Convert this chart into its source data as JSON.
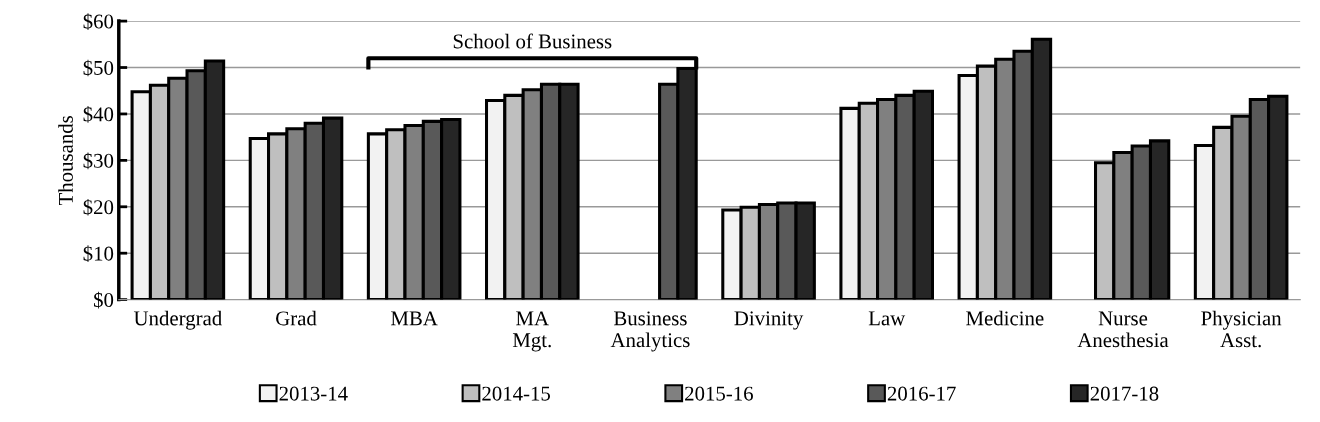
{
  "chart_data": {
    "type": "bar",
    "ylabel": "Thousands",
    "categories": [
      "Undergrad",
      "Grad",
      "MBA",
      "MA\nMgt.",
      "Business\nAnalytics",
      "Divinity",
      "Law",
      "Medicine",
      "Nurse\nAnesthesia",
      "Physician\nAsst."
    ],
    "series": [
      {
        "name": "2013-14",
        "color": "#f2f2f2",
        "values": [
          44.8,
          34.7,
          35.7,
          42.9,
          null,
          19.3,
          41.2,
          48.3,
          null,
          33.2
        ]
      },
      {
        "name": "2014-15",
        "color": "#bfbfbf",
        "values": [
          46.2,
          35.7,
          36.6,
          44.0,
          null,
          19.9,
          42.3,
          50.3,
          29.5,
          37.1
        ]
      },
      {
        "name": "2015-16",
        "color": "#808080",
        "values": [
          47.7,
          36.8,
          37.5,
          45.2,
          null,
          20.5,
          43.1,
          51.8,
          31.7,
          39.5
        ]
      },
      {
        "name": "2016-17",
        "color": "#595959",
        "values": [
          49.3,
          38.0,
          38.4,
          46.4,
          46.4,
          20.8,
          44.0,
          53.5,
          33.1,
          43.1
        ]
      },
      {
        "name": "2017-18",
        "color": "#262626",
        "values": [
          51.4,
          39.1,
          38.8,
          46.4,
          49.8,
          20.8,
          44.9,
          56.1,
          34.2,
          43.8
        ]
      }
    ],
    "ylim": [
      0,
      60
    ],
    "yticks": [
      {
        "value": 0,
        "label": "$0"
      },
      {
        "value": 10,
        "label": "$10"
      },
      {
        "value": 20,
        "label": "$20"
      },
      {
        "value": 30,
        "label": "$30"
      },
      {
        "value": 40,
        "label": "$40"
      },
      {
        "value": 50,
        "label": "$50"
      },
      {
        "value": 60,
        "label": "$60"
      }
    ],
    "grid": "y",
    "legend": "bottom",
    "annotations": [
      "School of Business"
    ]
  }
}
